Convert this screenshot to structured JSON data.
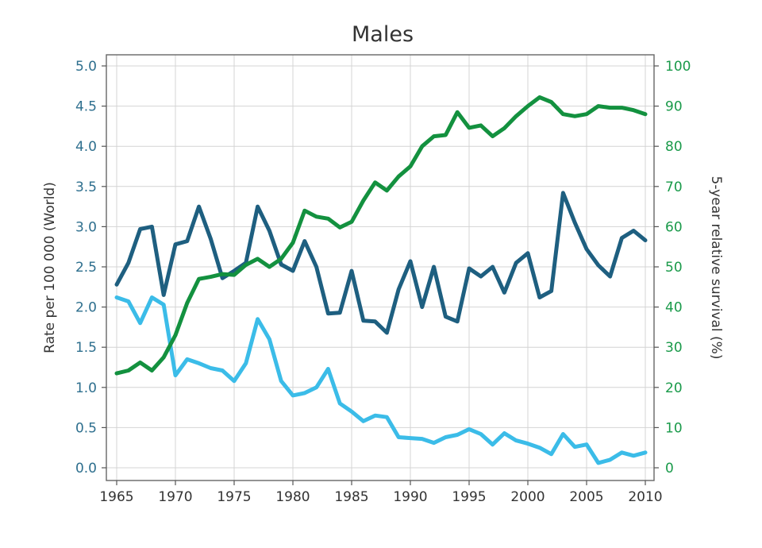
{
  "chart_data": {
    "type": "line",
    "title": "Males",
    "ylabel_left": "Rate per 100 000 (World)",
    "ylabel_right": "5-year relative survival (%)",
    "xlabel": "",
    "xlim": [
      1965,
      2010
    ],
    "ylim_left": [
      0,
      5
    ],
    "ylim_right": [
      0,
      100
    ],
    "x_ticks": [
      "1965",
      "1970",
      "1975",
      "1980",
      "1985",
      "1990",
      "1995",
      "2000",
      "2005",
      "2010"
    ],
    "y_left_ticks": [
      "0.0",
      "0.5",
      "1.0",
      "1.5",
      "2.0",
      "2.5",
      "3.0",
      "3.5",
      "4.0",
      "4.5",
      "5.0"
    ],
    "y_right_ticks": [
      "0",
      "10",
      "20",
      "30",
      "40",
      "50",
      "60",
      "70",
      "80",
      "90",
      "100"
    ],
    "grid": true,
    "x": [
      1965,
      1966,
      1967,
      1968,
      1969,
      1970,
      1971,
      1972,
      1973,
      1974,
      1975,
      1976,
      1977,
      1978,
      1979,
      1980,
      1981,
      1982,
      1983,
      1984,
      1985,
      1986,
      1987,
      1988,
      1989,
      1990,
      1991,
      1992,
      1993,
      1994,
      1995,
      1996,
      1997,
      1998,
      1999,
      2000,
      2001,
      2002,
      2003,
      2004,
      2005,
      2006,
      2007,
      2008,
      2009,
      2010
    ],
    "series": [
      {
        "axis": "left",
        "color": "#1e5f80",
        "values": [
          2.28,
          2.55,
          2.97,
          3.0,
          2.15,
          2.78,
          2.82,
          3.25,
          2.85,
          2.36,
          2.45,
          2.55,
          3.25,
          2.95,
          2.53,
          2.45,
          2.82,
          2.5,
          1.92,
          1.93,
          2.45,
          1.83,
          1.82,
          1.68,
          2.22,
          2.57,
          2.0,
          2.5,
          1.88,
          1.82,
          2.48,
          2.38,
          2.5,
          2.18,
          2.55,
          2.67,
          2.12,
          2.2,
          3.42,
          3.05,
          2.72,
          2.52,
          2.38,
          2.86,
          2.95,
          2.83
        ]
      },
      {
        "axis": "left",
        "color": "#3bbce8",
        "values": [
          2.12,
          2.07,
          1.8,
          2.12,
          2.03,
          1.15,
          1.35,
          1.3,
          1.24,
          1.21,
          1.08,
          1.3,
          1.85,
          1.6,
          1.08,
          0.9,
          0.93,
          1.0,
          1.23,
          0.8,
          0.7,
          0.58,
          0.65,
          0.63,
          0.38,
          0.37,
          0.36,
          0.31,
          0.38,
          0.41,
          0.48,
          0.42,
          0.29,
          0.43,
          0.34,
          0.3,
          0.25,
          0.17,
          0.42,
          0.26,
          0.29,
          0.06,
          0.1,
          0.19,
          0.15,
          0.19
        ]
      },
      {
        "axis": "right",
        "color": "#13913f",
        "values": [
          23.5,
          24.2,
          26.2,
          24.2,
          27.5,
          33.0,
          41.0,
          47.0,
          47.5,
          48.2,
          48.0,
          50.5,
          52.0,
          50.0,
          52.0,
          56.0,
          64.0,
          62.5,
          62.0,
          59.8,
          61.2,
          66.5,
          71.0,
          69.0,
          72.5,
          75.0,
          80.0,
          82.5,
          82.8,
          88.5,
          84.6,
          85.2,
          82.5,
          84.5,
          87.5,
          90.0,
          92.2,
          91.0,
          88.0,
          87.5,
          88.0,
          90.0,
          89.6,
          89.6,
          89.0,
          88.0
        ]
      }
    ]
  }
}
